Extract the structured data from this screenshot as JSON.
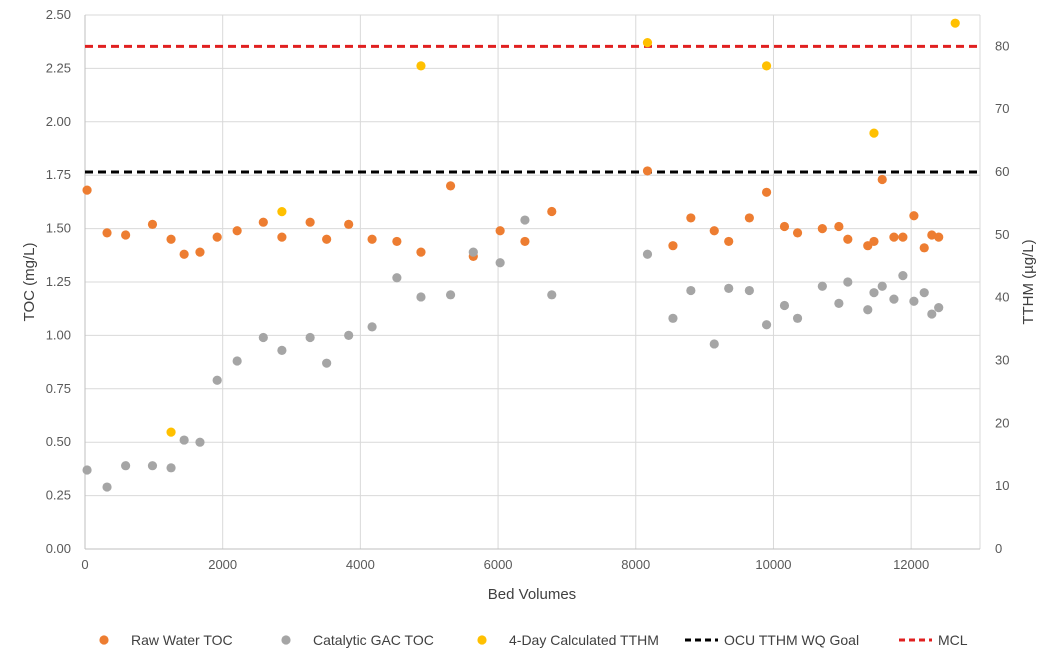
{
  "chart_data": {
    "type": "scatter",
    "xlabel": "Bed Volumes",
    "ylabel": "TOC (mg/L)",
    "y2label": "TTHM (µg/L)",
    "xlim": [
      0,
      13000
    ],
    "ylim": [
      0,
      2.5
    ],
    "y2lim": [
      0,
      85
    ],
    "x_ticks": [
      0,
      2000,
      4000,
      6000,
      8000,
      10000,
      12000
    ],
    "x_tick_labels": [
      "0",
      "2000",
      "4000",
      "6000",
      "8000",
      "10000",
      "12000"
    ],
    "y_ticks": [
      0,
      0.25,
      0.5,
      0.75,
      1.0,
      1.25,
      1.5,
      1.75,
      2.0,
      2.25,
      2.5
    ],
    "y_tick_labels": [
      "0.00",
      "0.25",
      "0.50",
      "0.75",
      "1.00",
      "1.25",
      "1.50",
      "1.75",
      "2.00",
      "2.25",
      "2.50"
    ],
    "y2_ticks": [
      0,
      10,
      20,
      30,
      40,
      50,
      60,
      70,
      80
    ],
    "y2_tick_labels": [
      "0",
      "10",
      "20",
      "30",
      "40",
      "50",
      "60",
      "70",
      "80"
    ],
    "grid": true,
    "legend_position": "bottom",
    "series": [
      {
        "name": "Raw Water TOC",
        "color": "#ED7D31",
        "axis": "left",
        "x": [
          30,
          320,
          590,
          980,
          1250,
          1440,
          1670,
          1920,
          2210,
          2590,
          2860,
          3270,
          3510,
          3830,
          4170,
          4530,
          4880,
          5310,
          5640,
          6030,
          6390,
          6780,
          8170,
          8540,
          8800,
          9140,
          9350,
          9650,
          9900,
          10160,
          10350,
          10710,
          10950,
          11080,
          11370,
          11460,
          11580,
          11750,
          11880,
          12040,
          12190,
          12300,
          12400
        ],
        "y": [
          1.68,
          1.48,
          1.47,
          1.52,
          1.45,
          1.38,
          1.39,
          1.46,
          1.49,
          1.53,
          1.46,
          1.53,
          1.45,
          1.52,
          1.45,
          1.44,
          1.39,
          1.7,
          1.37,
          1.49,
          1.44,
          1.58,
          1.77,
          1.42,
          1.55,
          1.49,
          1.44,
          1.55,
          1.67,
          1.51,
          1.48,
          1.5,
          1.51,
          1.45,
          1.42,
          1.44,
          1.73,
          1.46,
          1.46,
          1.56,
          1.41,
          1.47,
          1.46
        ]
      },
      {
        "name": "Catalytic GAC TOC",
        "color": "#A5A5A5",
        "axis": "left",
        "x": [
          30,
          320,
          590,
          980,
          1250,
          1440,
          1670,
          1920,
          2210,
          2590,
          2860,
          3270,
          3510,
          3830,
          4170,
          4530,
          4880,
          5310,
          5640,
          6030,
          6390,
          6780,
          8170,
          8540,
          8800,
          9140,
          9350,
          9650,
          9900,
          10160,
          10350,
          10710,
          10950,
          11080,
          11370,
          11460,
          11580,
          11750,
          11880,
          12040,
          12190,
          12300,
          12400
        ],
        "y": [
          0.37,
          0.29,
          0.39,
          0.39,
          0.38,
          0.51,
          0.5,
          0.79,
          0.88,
          0.99,
          0.93,
          0.99,
          0.87,
          1.0,
          1.04,
          1.27,
          1.18,
          1.19,
          1.39,
          1.34,
          1.54,
          1.19,
          1.38,
          1.08,
          1.21,
          0.96,
          1.22,
          1.21,
          1.05,
          1.14,
          1.08,
          1.23,
          1.15,
          1.25,
          1.12,
          1.2,
          1.23,
          1.17,
          1.28,
          1.16,
          1.2,
          1.1,
          1.13
        ]
      },
      {
        "name": "4-Day Calculated TTHM",
        "color": "#FFC000",
        "axis": "right",
        "x": [
          1250,
          2860,
          4880,
          8170,
          9900,
          11460,
          12640
        ],
        "y": [
          18.6,
          53.7,
          76.9,
          80.6,
          76.9,
          66.2,
          83.7
        ]
      }
    ],
    "reference_lines": [
      {
        "name": "OCU TTHM WQ Goal",
        "color": "#000000",
        "axis": "right",
        "value": 60
      },
      {
        "name": "MCL",
        "color": "#E02020",
        "axis": "right",
        "value": 80
      }
    ],
    "legend": [
      {
        "name": "Raw Water TOC",
        "kind": "marker",
        "color": "#ED7D31"
      },
      {
        "name": "Catalytic GAC TOC",
        "kind": "marker",
        "color": "#A5A5A5"
      },
      {
        "name": "4-Day Calculated TTHM",
        "kind": "marker",
        "color": "#FFC000"
      },
      {
        "name": "OCU TTHM WQ Goal",
        "kind": "dash",
        "color": "#000000"
      },
      {
        "name": "MCL",
        "kind": "dash",
        "color": "#E02020"
      }
    ]
  }
}
